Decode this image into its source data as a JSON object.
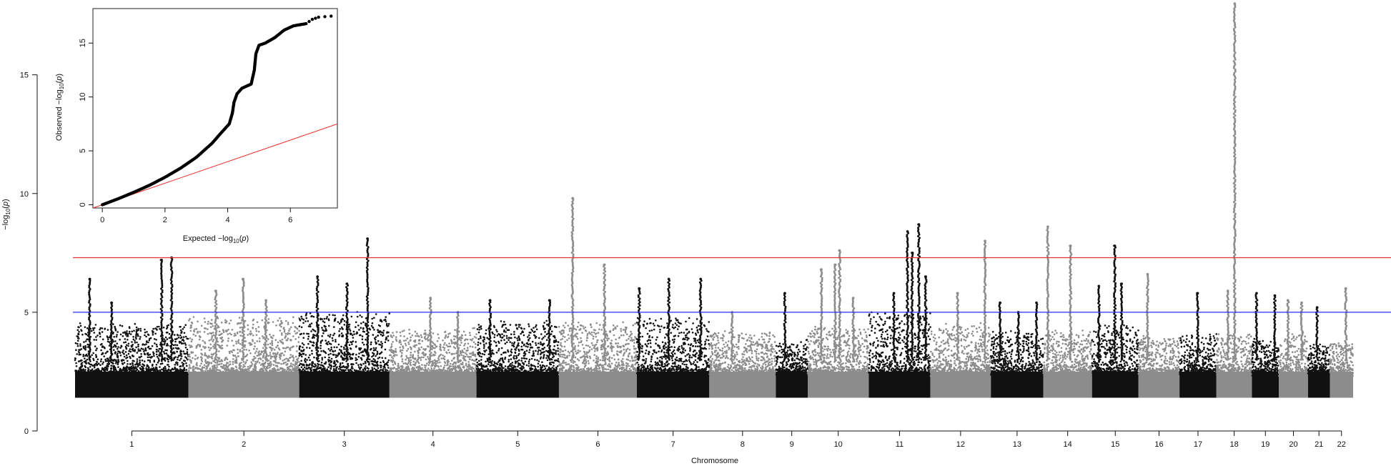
{
  "chart_data": [
    {
      "type": "scatter",
      "subtype": "manhattan",
      "title": "",
      "xlabel": "Chromosome",
      "ylabel": "-log10(p)",
      "ylim": [
        0,
        18
      ],
      "yticks": [
        0,
        5,
        10,
        15
      ],
      "thresholds": [
        {
          "value": 7.3,
          "color": "#e8322b"
        },
        {
          "value": 5.0,
          "color": "#2b2bff"
        }
      ],
      "colors": {
        "odd": "#111111",
        "even": "#8c8c8c"
      },
      "chromosomes": [
        {
          "label": "1",
          "start": 0,
          "end": 249,
          "base_max": 4.3,
          "peaks": [
            [
              32,
              6.4
            ],
            [
              80,
              5.4
            ],
            [
              190,
              7.2
            ],
            [
              212,
              7.3
            ]
          ]
        },
        {
          "label": "2",
          "start": 249,
          "end": 492,
          "base_max": 4.6,
          "peaks": [
            [
              60,
              5.9
            ],
            [
              120,
              6.4
            ],
            [
              170,
              5.5
            ]
          ]
        },
        {
          "label": "3",
          "start": 492,
          "end": 690,
          "base_max": 4.8,
          "peaks": [
            [
              40,
              6.5
            ],
            [
              105,
              6.2
            ],
            [
              150,
              8.1
            ]
          ]
        },
        {
          "label": "4",
          "start": 690,
          "end": 881,
          "base_max": 4.1,
          "peaks": [
            [
              90,
              5.6
            ],
            [
              150,
              5.0
            ]
          ]
        },
        {
          "label": "5",
          "start": 881,
          "end": 1062,
          "base_max": 4.4,
          "peaks": [
            [
              30,
              5.5
            ],
            [
              160,
              5.5
            ]
          ]
        },
        {
          "label": "6",
          "start": 1062,
          "end": 1233,
          "base_max": 4.4,
          "peaks": [
            [
              30,
              9.8
            ],
            [
              100,
              7.0
            ]
          ]
        },
        {
          "label": "7",
          "start": 1233,
          "end": 1392,
          "base_max": 4.6,
          "peaks": [
            [
              5,
              6.0
            ],
            [
              70,
              6.4
            ],
            [
              140,
              6.4
            ]
          ]
        },
        {
          "label": "8",
          "start": 1392,
          "end": 1538,
          "base_max": 4.0,
          "peaks": [
            [
              50,
              5.0
            ]
          ]
        },
        {
          "label": "9",
          "start": 1538,
          "end": 1608,
          "base_max": 3.6,
          "peaks": [
            [
              20,
              5.8
            ]
          ]
        },
        {
          "label": "10",
          "start": 1608,
          "end": 1742,
          "base_max": 4.2,
          "peaks": [
            [
              30,
              6.8
            ],
            [
              60,
              7.0
            ],
            [
              70,
              7.6
            ],
            [
              100,
              5.6
            ]
          ]
        },
        {
          "label": "11",
          "start": 1742,
          "end": 1877,
          "base_max": 4.8,
          "peaks": [
            [
              55,
              5.8
            ],
            [
              85,
              8.4
            ],
            [
              95,
              7.5
            ],
            [
              110,
              8.7
            ],
            [
              125,
              6.5
            ]
          ]
        },
        {
          "label": "12",
          "start": 1877,
          "end": 2010,
          "base_max": 4.3,
          "peaks": [
            [
              60,
              5.8
            ],
            [
              120,
              8.0
            ]
          ]
        },
        {
          "label": "13",
          "start": 2010,
          "end": 2125,
          "base_max": 4.0,
          "peaks": [
            [
              20,
              5.4
            ],
            [
              60,
              5.0
            ],
            [
              100,
              5.4
            ]
          ]
        },
        {
          "label": "14",
          "start": 2125,
          "end": 2232,
          "base_max": 4.0,
          "peaks": [
            [
              10,
              8.6
            ],
            [
              60,
              7.8
            ]
          ]
        },
        {
          "label": "15",
          "start": 2232,
          "end": 2334,
          "base_max": 4.3,
          "peaks": [
            [
              15,
              6.1
            ],
            [
              50,
              7.8
            ],
            [
              65,
              6.2
            ]
          ]
        },
        {
          "label": "16",
          "start": 2334,
          "end": 2424,
          "base_max": 3.8,
          "peaks": [
            [
              20,
              6.6
            ]
          ]
        },
        {
          "label": "17",
          "start": 2424,
          "end": 2505,
          "base_max": 3.9,
          "peaks": [
            [
              40,
              5.8
            ]
          ]
        },
        {
          "label": "18",
          "start": 2505,
          "end": 2583,
          "base_max": 3.9,
          "peaks": [
            [
              40,
              18.0
            ],
            [
              25,
              5.9
            ]
          ]
        },
        {
          "label": "19",
          "start": 2583,
          "end": 2642,
          "base_max": 3.7,
          "peaks": [
            [
              10,
              5.8
            ],
            [
              50,
              5.7
            ]
          ]
        },
        {
          "label": "20",
          "start": 2642,
          "end": 2706,
          "base_max": 3.9,
          "peaks": [
            [
              20,
              5.5
            ],
            [
              50,
              5.4
            ]
          ]
        },
        {
          "label": "21",
          "start": 2706,
          "end": 2754,
          "base_max": 3.5,
          "peaks": [
            [
              20,
              5.2
            ]
          ]
        },
        {
          "label": "22",
          "start": 2754,
          "end": 2805,
          "base_max": 3.6,
          "peaks": [
            [
              35,
              6.0
            ]
          ]
        }
      ]
    },
    {
      "type": "scatter",
      "subtype": "qq-plot",
      "title": "",
      "xlabel": "Expected -log10(p)",
      "ylabel": "Observed -log10(p)",
      "xlim": [
        -0.3,
        7.5
      ],
      "ylim": [
        -0.3,
        18.2
      ],
      "xticks": [
        0,
        2,
        4,
        6
      ],
      "yticks": [
        0,
        5,
        10,
        15
      ],
      "reference_line_color": "#e8322b",
      "curve": [
        [
          0,
          0
        ],
        [
          0.5,
          0.55
        ],
        [
          1,
          1.15
        ],
        [
          1.5,
          1.8
        ],
        [
          2,
          2.55
        ],
        [
          2.5,
          3.4
        ],
        [
          3,
          4.4
        ],
        [
          3.5,
          5.7
        ],
        [
          3.8,
          6.7
        ],
        [
          4.05,
          7.5
        ],
        [
          4.15,
          8.5
        ],
        [
          4.2,
          9.5
        ],
        [
          4.3,
          10.3
        ],
        [
          4.45,
          10.8
        ],
        [
          4.6,
          11.0
        ],
        [
          4.75,
          11.2
        ],
        [
          4.85,
          12.5
        ],
        [
          4.9,
          14.0
        ],
        [
          5.0,
          14.8
        ],
        [
          5.2,
          15.0
        ],
        [
          5.5,
          15.5
        ],
        [
          5.8,
          16.2
        ],
        [
          6.1,
          16.6
        ],
        [
          6.5,
          16.8
        ],
        [
          6.7,
          17.2
        ],
        [
          6.9,
          17.4
        ],
        [
          7.3,
          17.5
        ]
      ]
    }
  ]
}
